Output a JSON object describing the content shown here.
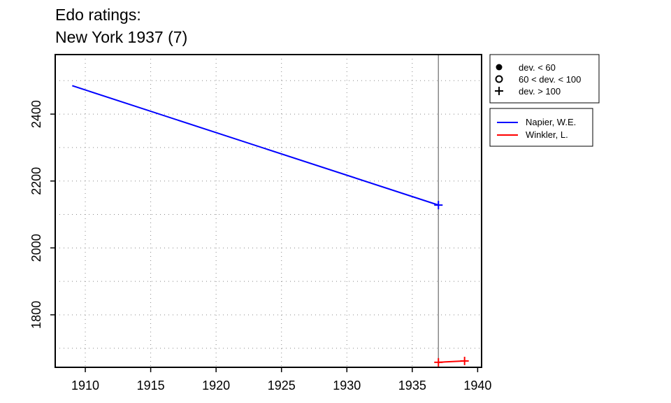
{
  "title": {
    "line1": "Edo ratings:",
    "line2": "New York 1937 (7)"
  },
  "chart_data": {
    "type": "line",
    "title": "Edo ratings: New York 1937 (7)",
    "xlabel": "",
    "ylabel": "",
    "xlim": [
      1907.7,
      1940.3
    ],
    "ylim": [
      1643,
      2578
    ],
    "x_ticks": [
      1910,
      1915,
      1920,
      1925,
      1930,
      1935,
      1940
    ],
    "y_ticks": [
      1800,
      2000,
      2200,
      2400
    ],
    "x_grid": [
      1910,
      1915,
      1920,
      1925,
      1930,
      1935
    ],
    "y_grid": [
      1700,
      1800,
      1900,
      2000,
      2100,
      2200,
      2300,
      2400,
      2500
    ],
    "grid": true,
    "reference_line_x": 1937,
    "series": [
      {
        "name": "Napier, W.E.",
        "color": "#0000ff",
        "x": [
          1909,
          1937
        ],
        "y": [
          2485,
          2128
        ],
        "markers": [
          {
            "x": 1937,
            "y": 2128,
            "symbol": "plus"
          }
        ]
      },
      {
        "name": "Winkler, L.",
        "color": "#ff0000",
        "x": [
          1937,
          1939
        ],
        "y": [
          1658,
          1662
        ],
        "markers": [
          {
            "x": 1937,
            "y": 1658,
            "symbol": "plus"
          },
          {
            "x": 1939,
            "y": 1662,
            "symbol": "plus"
          }
        ]
      }
    ],
    "legend_symbols": [
      {
        "symbol": "filled-circle",
        "label": "dev. < 60"
      },
      {
        "symbol": "open-circle",
        "label": "60 < dev. < 100"
      },
      {
        "symbol": "plus",
        "label": "dev. > 100"
      }
    ],
    "legend_placement": "right"
  }
}
